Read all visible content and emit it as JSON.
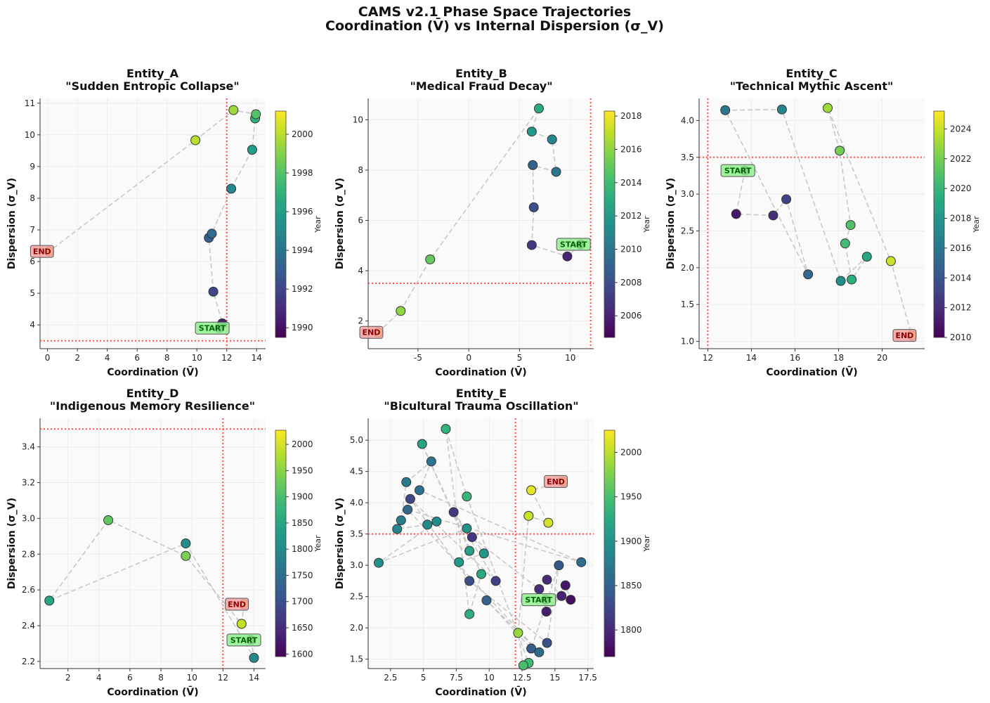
{
  "figure": {
    "title_line1": "CAMS v2.1 Phase Space Trajectories",
    "title_line2": "Coordination (V̄) vs Internal Dispersion (σ_V)"
  },
  "colors": {
    "threshold": "#ff4d4d",
    "trajectory": "#c8c8c8",
    "start_box": "#90ee90",
    "start_text": "#006400",
    "end_box": "#f4a0a0",
    "end_text": "#8b0000",
    "colormap": "viridis"
  },
  "chart_data": [
    {
      "type": "scatter",
      "name": "Entity_A",
      "title_line1": "Entity_A",
      "title_line2": "\"Sudden Entropic Collapse\"",
      "xlabel": "Coordination (V̄)",
      "ylabel": "Dispersion (σ_V)",
      "colorbar_label": "Year",
      "xlim": [
        -0.5,
        14.6
      ],
      "ylim": [
        3.25,
        11.15
      ],
      "xticks": [
        0,
        2,
        4,
        6,
        8,
        10,
        12,
        14
      ],
      "yticks": [
        4,
        5,
        6,
        7,
        8,
        9,
        10,
        11
      ],
      "year_range": [
        1989.5,
        2001.2
      ],
      "cbticks": [
        1990,
        1992,
        1994,
        1996,
        1998,
        2000
      ],
      "threshold_x": 12,
      "threshold_y": 3.5,
      "start_label": "START",
      "end_label": "END",
      "points": [
        {
          "year": 1990,
          "x": 11.5,
          "y": 3.9
        },
        {
          "year": 1990.5,
          "x": 11.7,
          "y": 4.05
        },
        {
          "year": 1992,
          "x": 11.1,
          "y": 5.05
        },
        {
          "year": 1993,
          "x": 10.8,
          "y": 6.75
        },
        {
          "year": 1993.5,
          "x": 11.0,
          "y": 6.88
        },
        {
          "year": 1995,
          "x": 12.3,
          "y": 8.3
        },
        {
          "year": 1996,
          "x": 13.7,
          "y": 9.53
        },
        {
          "year": 1997,
          "x": 13.9,
          "y": 10.52
        },
        {
          "year": 1998,
          "x": 13.95,
          "y": 10.65
        },
        {
          "year": 1999.5,
          "x": 12.45,
          "y": 10.78
        },
        {
          "year": 2000,
          "x": 9.9,
          "y": 9.83
        },
        {
          "year": 2001,
          "x": 0.1,
          "y": 6.32
        }
      ]
    },
    {
      "type": "scatter",
      "name": "Entity_B",
      "title_line1": "Entity_B",
      "title_line2": "\"Medical Fraud Decay\"",
      "xlabel": "Coordination (V̄)",
      "ylabel": "Dispersion (σ_V)",
      "colorbar_label": "Year",
      "xlim": [
        -9.9,
        12.3
      ],
      "ylim": [
        0.9,
        10.85
      ],
      "xticks": [
        -5,
        0,
        5,
        10
      ],
      "yticks": [
        2,
        4,
        6,
        8,
        10
      ],
      "year_range": [
        2004.7,
        2018.3
      ],
      "cbticks": [
        2006,
        2008,
        2010,
        2012,
        2014,
        2016,
        2018
      ],
      "threshold_x": 12,
      "threshold_y": 3.5,
      "start_label": "START",
      "end_label": "END",
      "points": [
        {
          "year": 2005,
          "x": 11.0,
          "y": 5.05
        },
        {
          "year": 2006,
          "x": 9.7,
          "y": 4.57
        },
        {
          "year": 2007,
          "x": 6.2,
          "y": 5.02
        },
        {
          "year": 2008,
          "x": 6.4,
          "y": 6.52
        },
        {
          "year": 2009,
          "x": 6.3,
          "y": 8.2
        },
        {
          "year": 2010,
          "x": 8.6,
          "y": 7.93
        },
        {
          "year": 2011,
          "x": 8.2,
          "y": 9.22
        },
        {
          "year": 2012,
          "x": 6.2,
          "y": 9.53
        },
        {
          "year": 2013,
          "x": 6.9,
          "y": 10.45
        },
        {
          "year": 2015,
          "x": -3.8,
          "y": 4.45
        },
        {
          "year": 2016,
          "x": -6.7,
          "y": 2.4
        },
        {
          "year": 2018,
          "x": -8.9,
          "y": 1.55
        }
      ]
    },
    {
      "type": "scatter",
      "name": "Entity_C",
      "title_line1": "Entity_C",
      "title_line2": "\"Technical Mythic Ascent\"",
      "xlabel": "Coordination (V̄)",
      "ylabel": "Dispersion (σ_V)",
      "colorbar_label": "Year",
      "xlim": [
        11.6,
        21.95
      ],
      "ylim": [
        0.9,
        4.3
      ],
      "xticks": [
        12,
        14,
        16,
        18,
        20
      ],
      "yticks": [
        1.0,
        1.5,
        2.0,
        2.5,
        3.0,
        3.5,
        4.0
      ],
      "year_range": [
        2010,
        2025.2
      ],
      "cbticks": [
        2010,
        2012,
        2014,
        2016,
        2018,
        2020,
        2022,
        2024
      ],
      "threshold_x": 12,
      "threshold_y": 3.5,
      "start_label": "START",
      "end_label": "END",
      "points": [
        {
          "year": 2010,
          "x": 13.7,
          "y": 3.32
        },
        {
          "year": 2011,
          "x": 13.3,
          "y": 2.73
        },
        {
          "year": 2012,
          "x": 15.0,
          "y": 2.71
        },
        {
          "year": 2013,
          "x": 15.6,
          "y": 2.93
        },
        {
          "year": 2015,
          "x": 16.6,
          "y": 1.91
        },
        {
          "year": 2016,
          "x": 12.8,
          "y": 4.14
        },
        {
          "year": 2017,
          "x": 15.4,
          "y": 4.15
        },
        {
          "year": 2017.5,
          "x": 18.1,
          "y": 1.82
        },
        {
          "year": 2019,
          "x": 19.3,
          "y": 2.15
        },
        {
          "year": 2019.5,
          "x": 18.6,
          "y": 1.84
        },
        {
          "year": 2020.5,
          "x": 18.3,
          "y": 2.33
        },
        {
          "year": 2021,
          "x": 18.55,
          "y": 2.58
        },
        {
          "year": 2022,
          "x": 18.05,
          "y": 3.59
        },
        {
          "year": 2023,
          "x": 17.5,
          "y": 4.17
        },
        {
          "year": 2024,
          "x": 20.4,
          "y": 2.09
        },
        {
          "year": 2025,
          "x": 21.35,
          "y": 1.08
        }
      ]
    },
    {
      "type": "scatter",
      "name": "Entity_D",
      "title_line1": "Entity_D",
      "title_line2": "\"Indigenous Memory Resilience\"",
      "xlabel": "Coordination (V̄)",
      "ylabel": "Dispersion (σ_V)",
      "colorbar_label": "Year",
      "xlim": [
        0.2,
        14.75
      ],
      "ylim": [
        2.16,
        3.56
      ],
      "xticks": [
        2,
        4,
        6,
        8,
        10,
        12,
        14
      ],
      "yticks": [
        2.2,
        2.4,
        2.6,
        2.8,
        3.0,
        3.2,
        3.4
      ],
      "year_range": [
        1595,
        2027
      ],
      "cbticks": [
        1600,
        1650,
        1700,
        1750,
        1800,
        1850,
        1900,
        1950,
        2000
      ],
      "threshold_x": 12,
      "threshold_y": 3.5,
      "start_label": "START",
      "end_label": "END",
      "points": [
        {
          "year": 1600,
          "x": 13.8,
          "y": 2.32
        },
        {
          "year": 1800,
          "x": 14.0,
          "y": 2.22
        },
        {
          "year": 1805,
          "x": 9.6,
          "y": 2.86
        },
        {
          "year": 1850,
          "x": 0.8,
          "y": 2.54
        },
        {
          "year": 1920,
          "x": 4.6,
          "y": 2.99
        },
        {
          "year": 1940,
          "x": 9.6,
          "y": 2.79
        },
        {
          "year": 1990,
          "x": 13.2,
          "y": 2.41
        },
        {
          "year": 2025,
          "x": 13.35,
          "y": 2.52
        }
      ]
    },
    {
      "type": "scatter",
      "name": "Entity_E",
      "title_line1": "Entity_E",
      "title_line2": "\"Bicultural Trauma Oscillation\"",
      "xlabel": "Coordination (V̄)",
      "ylabel": "Dispersion (σ_V)",
      "colorbar_label": "Year",
      "xlim": [
        0.8,
        17.95
      ],
      "ylim": [
        1.35,
        5.35
      ],
      "xticks": [
        2.5,
        5.0,
        7.5,
        10.0,
        12.5,
        15.0,
        17.5
      ],
      "yticks": [
        1.5,
        2.0,
        2.5,
        3.0,
        3.5,
        4.0,
        4.5,
        5.0
      ],
      "year_range": [
        1770,
        2025
      ],
      "cbticks": [
        1800,
        1850,
        1900,
        1950,
        2000
      ],
      "threshold_x": 12,
      "threshold_y": 3.5,
      "start_label": "START",
      "end_label": "END",
      "points": [
        {
          "year": 1775,
          "x": 14.3,
          "y": 2.45
        },
        {
          "year": 1780,
          "x": 16.2,
          "y": 2.45
        },
        {
          "year": 1785,
          "x": 15.8,
          "y": 2.68
        },
        {
          "year": 1790,
          "x": 14.35,
          "y": 2.26
        },
        {
          "year": 1795,
          "x": 15.5,
          "y": 2.51
        },
        {
          "year": 1800,
          "x": 14.4,
          "y": 2.77
        },
        {
          "year": 1805,
          "x": 13.8,
          "y": 2.62
        },
        {
          "year": 1810,
          "x": 8.7,
          "y": 3.45
        },
        {
          "year": 1815,
          "x": 7.3,
          "y": 3.85
        },
        {
          "year": 1820,
          "x": 10.5,
          "y": 2.75
        },
        {
          "year": 1825,
          "x": 4.0,
          "y": 4.06
        },
        {
          "year": 1830,
          "x": 8.5,
          "y": 2.75
        },
        {
          "year": 1835,
          "x": 14.4,
          "y": 1.76
        },
        {
          "year": 1840,
          "x": 15.3,
          "y": 3.0
        },
        {
          "year": 1845,
          "x": 13.2,
          "y": 1.67
        },
        {
          "year": 1850,
          "x": 9.8,
          "y": 2.44
        },
        {
          "year": 1855,
          "x": 13.8,
          "y": 1.61
        },
        {
          "year": 1858,
          "x": 3.8,
          "y": 3.89
        },
        {
          "year": 1860,
          "x": 17.0,
          "y": 3.05
        },
        {
          "year": 1865,
          "x": 4.7,
          "y": 4.2
        },
        {
          "year": 1870,
          "x": 5.6,
          "y": 4.66
        },
        {
          "year": 1875,
          "x": 3.7,
          "y": 4.33
        },
        {
          "year": 1880,
          "x": 3.3,
          "y": 3.72
        },
        {
          "year": 1885,
          "x": 3.0,
          "y": 3.58
        },
        {
          "year": 1890,
          "x": 5.3,
          "y": 3.65
        },
        {
          "year": 1893,
          "x": 6.0,
          "y": 3.7
        },
        {
          "year": 1897,
          "x": 1.6,
          "y": 3.04
        },
        {
          "year": 1900,
          "x": 8.3,
          "y": 3.59
        },
        {
          "year": 1905,
          "x": 9.6,
          "y": 3.19
        },
        {
          "year": 1910,
          "x": 7.7,
          "y": 3.05
        },
        {
          "year": 1915,
          "x": 8.5,
          "y": 3.23
        },
        {
          "year": 1920,
          "x": 4.9,
          "y": 4.94
        },
        {
          "year": 1925,
          "x": 9.4,
          "y": 2.86
        },
        {
          "year": 1930,
          "x": 8.5,
          "y": 2.22
        },
        {
          "year": 1935,
          "x": 6.7,
          "y": 5.18
        },
        {
          "year": 1940,
          "x": 8.3,
          "y": 4.1
        },
        {
          "year": 1945,
          "x": 13.0,
          "y": 1.44
        },
        {
          "year": 1950,
          "x": 12.6,
          "y": 1.4
        },
        {
          "year": 1985,
          "x": 12.2,
          "y": 1.92
        },
        {
          "year": 2005,
          "x": 13.0,
          "y": 3.79
        },
        {
          "year": 2010,
          "x": 14.5,
          "y": 3.68
        },
        {
          "year": 2015,
          "x": 13.2,
          "y": 4.2
        },
        {
          "year": 2022,
          "x": 15.6,
          "y": 4.34
        }
      ]
    }
  ]
}
